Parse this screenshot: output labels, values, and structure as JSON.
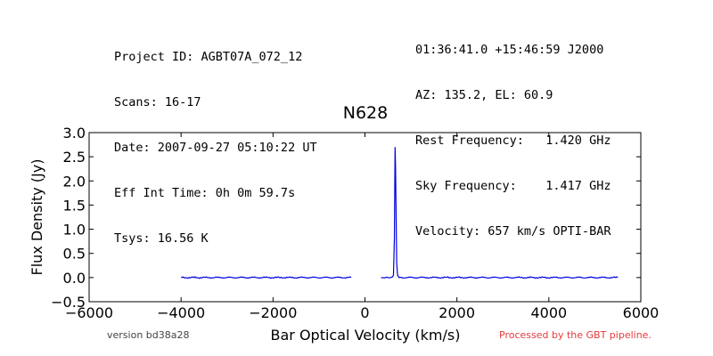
{
  "header": {
    "left": [
      "Project ID: AGBT07A_072_12",
      "Scans: 16-17",
      "Date: 2007-09-27 05:10:22 UT",
      "Eff Int Time: 0h 0m 59.7s",
      "Tsys: 16.56 K"
    ],
    "right": [
      "01:36:41.0 +15:46:59 J2000",
      "AZ: 135.2, EL: 60.9",
      "Rest Frequency:   1.420 GHz",
      "Sky Frequency:    1.417 GHz",
      "Velocity: 657 km/s OPTI-BAR"
    ]
  },
  "footer": {
    "version": "version bd38a28",
    "processed": "Processed by the GBT pipeline."
  },
  "colors": {
    "line": "#0000dd",
    "processed_text": "#e83a3a"
  },
  "chart_data": {
    "type": "line",
    "title": "N628",
    "xlabel": "Bar Optical Velocity (km/s)",
    "ylabel": "Flux Density (Jy)",
    "xlim": [
      -6000,
      6000
    ],
    "ylim": [
      -0.5,
      3.0
    ],
    "xticks": [
      -6000,
      -4000,
      -2000,
      0,
      2000,
      4000,
      6000
    ],
    "xtick_labels": [
      "−6000",
      "−4000",
      "−2000",
      "0",
      "2000",
      "4000",
      "6000"
    ],
    "yticks": [
      -0.5,
      0.0,
      0.5,
      1.0,
      1.5,
      2.0,
      2.5,
      3.0
    ],
    "ytick_labels": [
      "−0.5",
      "0.0",
      "0.5",
      "1.0",
      "1.5",
      "2.0",
      "2.5",
      "3.0"
    ],
    "grid": false,
    "series": [
      {
        "segments": [
          {
            "x": [
              -4000,
              -3000,
              -2000,
              -1000,
              -300
            ],
            "y": [
              0.0,
              0.0,
              0.0,
              0.0,
              0.0
            ]
          },
          {
            "x": [
              350,
              580,
              620,
              640,
              655,
              665,
              675,
              690,
              710,
              740,
              800,
              1500,
              3000,
              4500,
              5500
            ],
            "y": [
              0.0,
              0.0,
              0.05,
              0.8,
              2.7,
              2.3,
              1.5,
              0.3,
              0.05,
              0.0,
              0.0,
              0.0,
              0.0,
              0.0,
              0.0
            ]
          }
        ]
      }
    ]
  }
}
